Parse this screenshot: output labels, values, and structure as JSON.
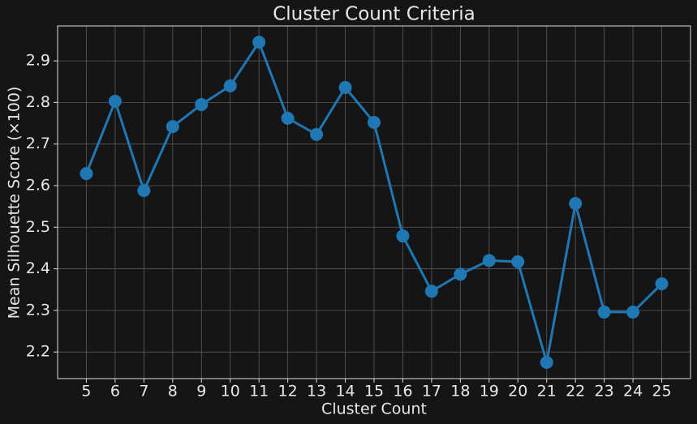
{
  "chart_data": {
    "type": "line",
    "title": "Cluster Count Criteria",
    "x_label": "Cluster Count",
    "y_label": "Mean Silhouette Score (×100)",
    "x": [
      5,
      6,
      7,
      8,
      9,
      10,
      11,
      12,
      13,
      14,
      15,
      16,
      17,
      18,
      19,
      20,
      21,
      22,
      23,
      24,
      25
    ],
    "series": [
      {
        "name": null,
        "color": "#1f77b4",
        "values": [
          2.629,
          2.803,
          2.588,
          2.742,
          2.795,
          2.84,
          2.945,
          2.762,
          2.723,
          2.836,
          2.752,
          2.479,
          2.346,
          2.387,
          2.42,
          2.417,
          2.175,
          2.557,
          2.296,
          2.296,
          2.364
        ]
      }
    ],
    "xlim": [
      4,
      26
    ],
    "ylim": [
      2.136,
      2.984
    ],
    "xticks": [
      5,
      6,
      7,
      8,
      9,
      10,
      11,
      12,
      13,
      14,
      15,
      16,
      17,
      18,
      19,
      20,
      21,
      22,
      23,
      24,
      25
    ],
    "yticks": [
      2.2,
      2.3,
      2.4,
      2.5,
      2.6,
      2.7,
      2.8,
      2.9
    ],
    "grid": true
  }
}
